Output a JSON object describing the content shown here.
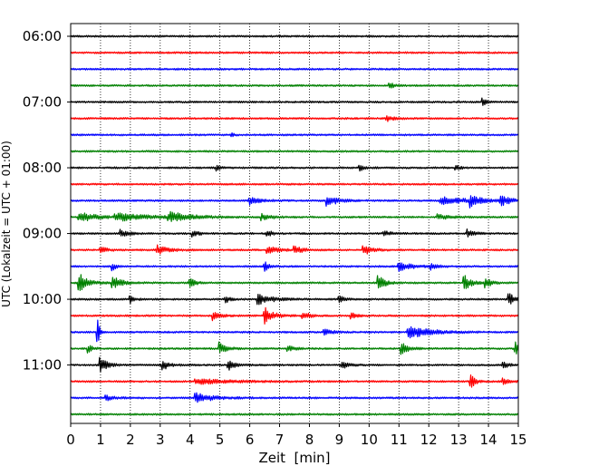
{
  "chart_data": {
    "type": "line",
    "chart_kind": "seismogram helicorder (drum plot)",
    "xlabel": "Zeit  [min]",
    "ylabel": "UTC (Lokalzeit = UTC + 01:00)",
    "xlim": [
      0,
      15
    ],
    "x_ticks": [
      0,
      1,
      2,
      3,
      4,
      5,
      6,
      7,
      8,
      9,
      10,
      11,
      12,
      13,
      14,
      15
    ],
    "x_tick_labels": [
      "0",
      "1",
      "2",
      "3",
      "4",
      "5",
      "6",
      "7",
      "8",
      "9",
      "10",
      "11",
      "12",
      "13",
      "14",
      "15"
    ],
    "vertical_grid": true,
    "grid_style": "dotted",
    "y_tick_labels": [
      "06:00",
      "07:00",
      "08:00",
      "09:00",
      "10:00",
      "11:00"
    ],
    "trace_colors": [
      "#000000",
      "#ff0000",
      "#0000ff",
      "#008000"
    ],
    "trace_count": 24,
    "trace_interval_min": 15,
    "traces": [
      {
        "start": "06:00",
        "events": []
      },
      {
        "start": "06:15",
        "events": []
      },
      {
        "start": "06:30",
        "events": []
      },
      {
        "start": "06:45",
        "events": [
          {
            "t": 10.7,
            "a": 3,
            "d": 0.2
          }
        ]
      },
      {
        "start": "07:00",
        "events": [
          {
            "t": 13.8,
            "a": 5,
            "d": 0.15
          }
        ]
      },
      {
        "start": "07:15",
        "events": [
          {
            "t": 10.6,
            "a": 3,
            "d": 0.3
          }
        ]
      },
      {
        "start": "07:30",
        "events": [
          {
            "t": 5.4,
            "a": 3,
            "d": 0.1
          }
        ]
      },
      {
        "start": "07:45",
        "events": []
      },
      {
        "start": "08:00",
        "events": [
          {
            "t": 4.9,
            "a": 3,
            "d": 0.2
          },
          {
            "t": 9.7,
            "a": 3,
            "d": 0.2
          },
          {
            "t": 12.9,
            "a": 3,
            "d": 0.2
          }
        ]
      },
      {
        "start": "08:15",
        "events": []
      },
      {
        "start": "08:30",
        "events": [
          {
            "t": 6.0,
            "a": 4,
            "d": 0.5
          },
          {
            "t": 8.6,
            "a": 6,
            "d": 0.5
          },
          {
            "t": 12.4,
            "a": 4,
            "d": 1.3
          },
          {
            "t": 13.4,
            "a": 6,
            "d": 0.4
          },
          {
            "t": 14.4,
            "a": 5,
            "d": 0.5
          }
        ]
      },
      {
        "start": "08:45",
        "events": [
          {
            "t": 0.3,
            "a": 5,
            "d": 0.8
          },
          {
            "t": 1.5,
            "a": 4,
            "d": 1.5
          },
          {
            "t": 3.3,
            "a": 5,
            "d": 1.0
          },
          {
            "t": 6.4,
            "a": 3,
            "d": 0.5
          },
          {
            "t": 12.3,
            "a": 3,
            "d": 0.5
          }
        ]
      },
      {
        "start": "09:00",
        "events": [
          {
            "t": 1.7,
            "a": 4,
            "d": 0.3
          },
          {
            "t": 4.1,
            "a": 3,
            "d": 0.3
          },
          {
            "t": 6.6,
            "a": 4,
            "d": 0.2
          },
          {
            "t": 10.5,
            "a": 3,
            "d": 0.3
          },
          {
            "t": 13.3,
            "a": 4,
            "d": 0.3
          }
        ]
      },
      {
        "start": "09:15",
        "events": [
          {
            "t": 1.0,
            "a": 4,
            "d": 0.3
          },
          {
            "t": 2.9,
            "a": 5,
            "d": 0.5
          },
          {
            "t": 6.6,
            "a": 4,
            "d": 0.5
          },
          {
            "t": 7.5,
            "a": 4,
            "d": 0.4
          },
          {
            "t": 9.8,
            "a": 6,
            "d": 0.4
          }
        ]
      },
      {
        "start": "09:30",
        "events": [
          {
            "t": 1.4,
            "a": 4,
            "d": 0.2
          },
          {
            "t": 6.5,
            "a": 5,
            "d": 0.2
          },
          {
            "t": 11.0,
            "a": 5,
            "d": 0.6
          },
          {
            "t": 12.1,
            "a": 3,
            "d": 0.3
          }
        ]
      },
      {
        "start": "09:45",
        "events": [
          {
            "t": 0.3,
            "a": 10,
            "d": 0.4
          },
          {
            "t": 1.4,
            "a": 7,
            "d": 0.4
          },
          {
            "t": 4.0,
            "a": 7,
            "d": 0.2
          },
          {
            "t": 10.3,
            "a": 9,
            "d": 0.3
          },
          {
            "t": 13.2,
            "a": 8,
            "d": 0.3
          },
          {
            "t": 13.9,
            "a": 5,
            "d": 0.3
          }
        ]
      },
      {
        "start": "10:00",
        "events": [
          {
            "t": 2.0,
            "a": 4,
            "d": 0.2
          },
          {
            "t": 5.2,
            "a": 4,
            "d": 0.2
          },
          {
            "t": 6.3,
            "a": 5,
            "d": 0.7
          },
          {
            "t": 9.0,
            "a": 4,
            "d": 0.2
          },
          {
            "t": 14.7,
            "a": 6,
            "d": 0.3
          }
        ]
      },
      {
        "start": "10:15",
        "events": [
          {
            "t": 4.8,
            "a": 5,
            "d": 0.3
          },
          {
            "t": 6.5,
            "a": 9,
            "d": 0.4
          },
          {
            "t": 7.8,
            "a": 4,
            "d": 0.3
          },
          {
            "t": 9.4,
            "a": 3,
            "d": 0.3
          }
        ]
      },
      {
        "start": "10:30",
        "events": [
          {
            "t": 0.9,
            "a": 16,
            "d": 0.1
          },
          {
            "t": 8.5,
            "a": 3,
            "d": 0.4
          },
          {
            "t": 11.3,
            "a": 7,
            "d": 1.0
          }
        ]
      },
      {
        "start": "10:45",
        "events": [
          {
            "t": 0.6,
            "a": 4,
            "d": 0.2
          },
          {
            "t": 5.0,
            "a": 7,
            "d": 0.3
          },
          {
            "t": 7.3,
            "a": 3,
            "d": 0.3
          },
          {
            "t": 11.1,
            "a": 6,
            "d": 0.3
          },
          {
            "t": 14.9,
            "a": 7,
            "d": 0.2
          }
        ]
      },
      {
        "start": "11:00",
        "events": [
          {
            "t": 1.0,
            "a": 9,
            "d": 0.3
          },
          {
            "t": 3.1,
            "a": 5,
            "d": 0.3
          },
          {
            "t": 5.3,
            "a": 5,
            "d": 0.3
          },
          {
            "t": 9.1,
            "a": 4,
            "d": 0.3
          },
          {
            "t": 14.5,
            "a": 5,
            "d": 0.2
          }
        ]
      },
      {
        "start": "11:15",
        "events": [
          {
            "t": 4.2,
            "a": 3,
            "d": 1.5
          },
          {
            "t": 13.4,
            "a": 8,
            "d": 0.2
          },
          {
            "t": 14.5,
            "a": 3,
            "d": 0.4
          }
        ]
      },
      {
        "start": "11:30",
        "events": [
          {
            "t": 1.2,
            "a": 3,
            "d": 0.4
          },
          {
            "t": 4.2,
            "a": 5,
            "d": 0.8
          }
        ]
      },
      {
        "start": "11:45",
        "events": []
      }
    ]
  }
}
